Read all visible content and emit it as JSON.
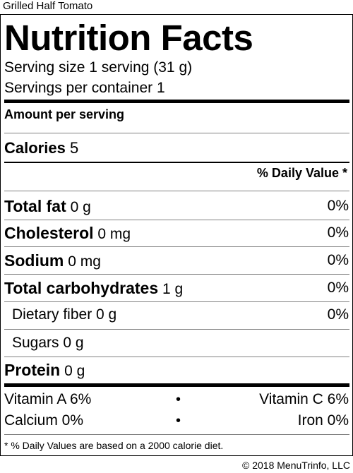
{
  "product_name": "Grilled Half Tomato",
  "label": {
    "title": "Nutrition Facts",
    "serving_size": "Serving size 1 serving (31 g)",
    "servings_per_container": "Servings per container 1",
    "amount_per_serving": "Amount per serving",
    "calories_label": "Calories",
    "calories_value": "5",
    "daily_value_header": "% Daily Value *",
    "nutrients": [
      {
        "name": "Total fat",
        "amount": "0 g",
        "dv": "0%"
      },
      {
        "name": "Cholesterol",
        "amount": "0 mg",
        "dv": "0%"
      },
      {
        "name": "Sodium",
        "amount": "0 mg",
        "dv": "0%"
      },
      {
        "name": "Total carbohydrates",
        "amount": "1 g",
        "dv": "0%"
      },
      {
        "name": "Dietary fiber",
        "amount": "0 g",
        "dv": "0%"
      },
      {
        "name": "Sugars",
        "amount": "0 g",
        "dv": ""
      },
      {
        "name": "Protein",
        "amount": "0 g",
        "dv": ""
      }
    ],
    "vitamins": [
      {
        "left": "Vitamin A 6%",
        "separator": "•",
        "right": "Vitamin C 6%"
      },
      {
        "left": "Calcium 0%",
        "separator": "•",
        "right": "Iron 0%"
      }
    ],
    "footnote": "* % Daily Values are based on a 2000 calorie diet."
  },
  "copyright": "© 2018 MenuTrinfo, LLC"
}
